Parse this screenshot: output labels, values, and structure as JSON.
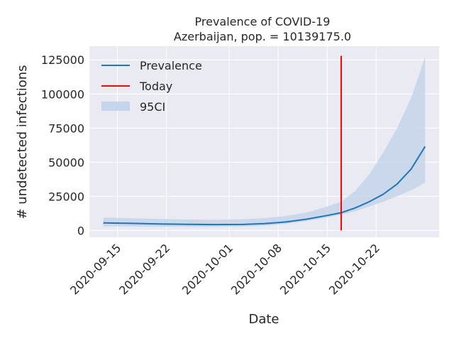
{
  "chart_data": {
    "type": "line",
    "title": "Prevalence of COVID-19",
    "subtitle": "Azerbaijan, pop. = 10139175.0",
    "xlabel": "Date",
    "ylabel": "# undetected infections",
    "x_tick_labels": [
      "2020-09-15",
      "2020-09-22",
      "2020-10-01",
      "2020-10-08",
      "2020-10-15",
      "2020-10-22"
    ],
    "y_ticks": [
      0,
      25000,
      50000,
      75000,
      100000,
      125000
    ],
    "y_tick_labels": [
      "0",
      "25000",
      "50000",
      "75000",
      "100000",
      "125000"
    ],
    "xlim": [
      "2020-09-11",
      "2020-10-31"
    ],
    "ylim": [
      -5000,
      135000
    ],
    "grid": true,
    "legend_position": "top-left",
    "legend": [
      "Prevalence",
      "Today",
      "95CI"
    ],
    "colors": {
      "prevalence": "#1f77b4",
      "today": "#ff0000",
      "ci": "#c5d4ea",
      "background": "#eaeaf2",
      "grid": "#ffffff"
    },
    "today": "2020-10-17",
    "today_line_range": [
      0,
      128000
    ],
    "series": [
      {
        "name": "Prevalence",
        "x": [
          "2020-09-13",
          "2020-09-17",
          "2020-09-21",
          "2020-09-25",
          "2020-09-29",
          "2020-10-03",
          "2020-10-06",
          "2020-10-09",
          "2020-10-12",
          "2020-10-15",
          "2020-10-17",
          "2020-10-19",
          "2020-10-21",
          "2020-10-23",
          "2020-10-25",
          "2020-10-27",
          "2020-10-29"
        ],
        "y": [
          5500,
          5200,
          4800,
          4500,
          4300,
          4400,
          5000,
          6200,
          8200,
          11000,
          13000,
          16500,
          21000,
          26500,
          34000,
          45000,
          61500
        ]
      },
      {
        "name": "95CI",
        "x": [
          "2020-09-13",
          "2020-09-17",
          "2020-09-21",
          "2020-09-25",
          "2020-09-29",
          "2020-10-03",
          "2020-10-06",
          "2020-10-09",
          "2020-10-12",
          "2020-10-15",
          "2020-10-17",
          "2020-10-19",
          "2020-10-21",
          "2020-10-23",
          "2020-10-25",
          "2020-10-27",
          "2020-10-29"
        ],
        "lower": [
          3000,
          2900,
          2800,
          2700,
          2700,
          2900,
          3500,
          4800,
          6800,
          9500,
          11500,
          14000,
          17500,
          21000,
          25000,
          29500,
          35000
        ],
        "upper": [
          9500,
          9000,
          8500,
          8000,
          7800,
          8200,
          9000,
          10500,
          13000,
          17500,
          21000,
          29000,
          41000,
          57000,
          75000,
          97000,
          127000
        ]
      }
    ]
  }
}
